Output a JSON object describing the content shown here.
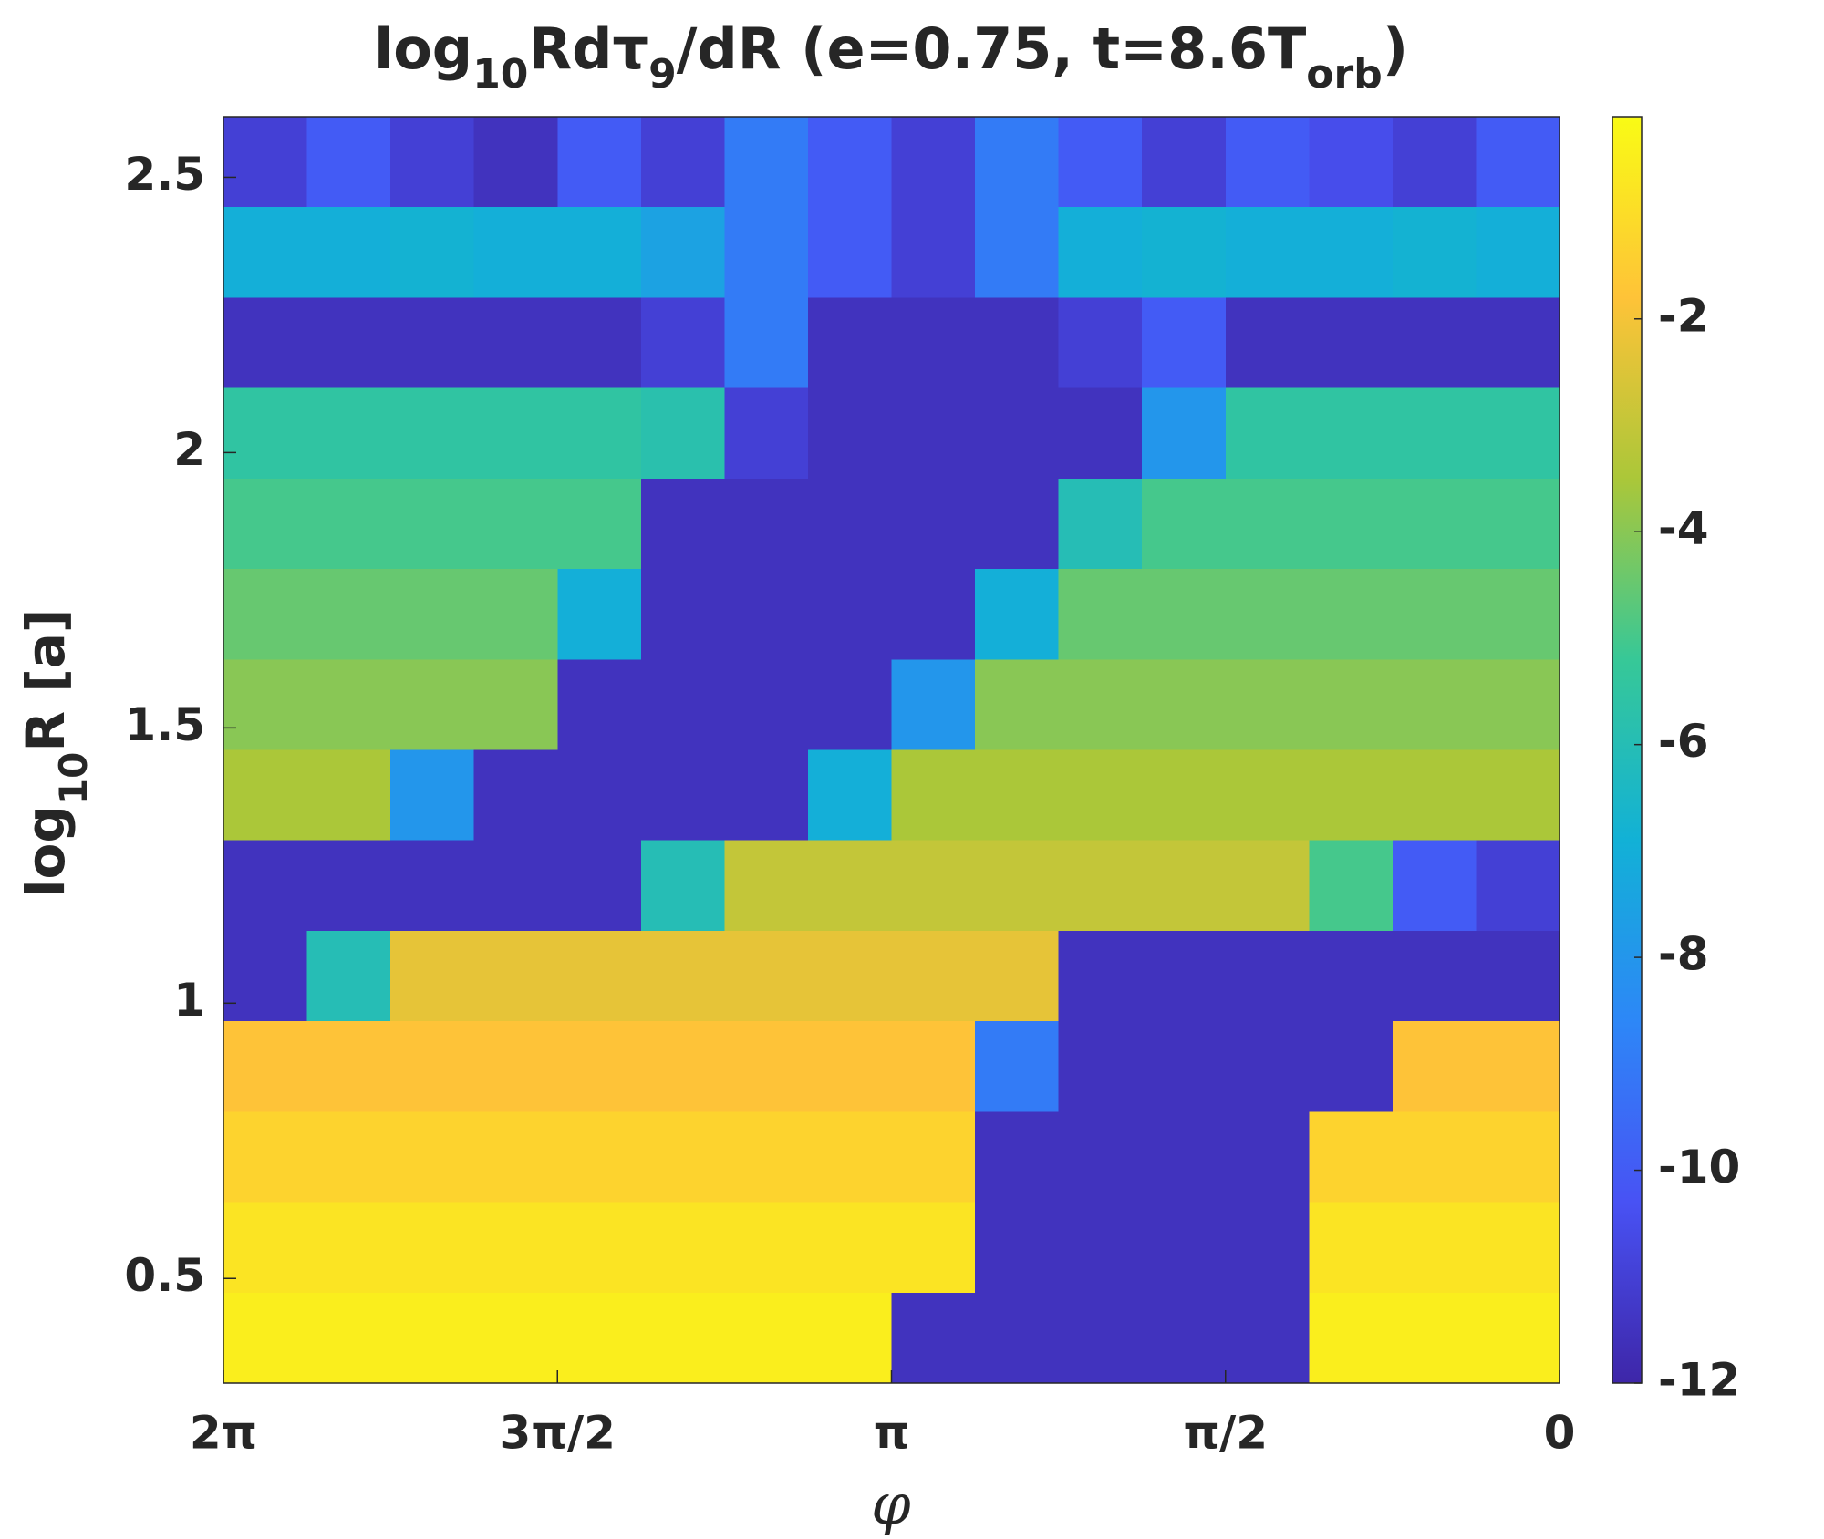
{
  "chart_data": {
    "type": "heatmap",
    "title": [
      "log",
      "10",
      "Rdτ",
      "9",
      "/dR (e=0.75, t=8.6T",
      "orb",
      ")"
    ],
    "x_label": "φ",
    "y_label": [
      "log",
      "10",
      "R [a]"
    ],
    "xlim": [
      6.283185,
      0
    ],
    "xticks": [
      {
        "value": 6.283185,
        "label": "2π"
      },
      {
        "value": 4.712389,
        "label": "3π/2"
      },
      {
        "value": 3.141593,
        "label": "π"
      },
      {
        "value": 1.570796,
        "label": "π/2"
      },
      0
    ],
    "ylim": [
      0.31,
      2.61
    ],
    "yticks": [
      0.5,
      1,
      1.5,
      2,
      2.5
    ],
    "clim": [
      -12,
      -0.1
    ],
    "cticks": [
      -12,
      -10,
      -8,
      -6,
      -4,
      -2
    ],
    "colormap": [
      "#3e26a8",
      "#4852f4",
      "#2d87f7",
      "#12b1d6",
      "#37c897",
      "#abc739",
      "#fec338",
      "#f9fb15"
    ],
    "values": [
      [
        -11,
        -10,
        -11,
        -11.5,
        -10,
        -11,
        -9,
        -10,
        -11,
        -9,
        -10,
        -11,
        -10,
        -10.5,
        -11,
        -10
      ],
      [
        -7,
        -7,
        -6.8,
        -7,
        -7,
        -7.5,
        -9,
        -10,
        -11,
        -9,
        -7,
        -6.8,
        -7,
        -7,
        -6.8,
        -7
      ],
      [
        -11.5,
        -11.5,
        -11.5,
        -11.5,
        -11.5,
        -11,
        -9,
        -11.5,
        -11.5,
        -11.5,
        -11,
        -10,
        -11.5,
        -11.5,
        -11.5,
        -11.5
      ],
      [
        -5.5,
        -5.5,
        -5.5,
        -5.5,
        -5.5,
        -5.8,
        -11,
        -11.5,
        -11.5,
        -11.5,
        -11.5,
        -8,
        -5.5,
        -5.5,
        -5.5,
        -5.5
      ],
      [
        -5,
        -5,
        -5,
        -5,
        -5,
        -11.5,
        -11.5,
        -11.5,
        -11.5,
        -11.5,
        -6,
        -5,
        -5,
        -5,
        -5,
        -5
      ],
      [
        -4.5,
        -4.5,
        -4.5,
        -4.5,
        -7,
        -11.5,
        -11.5,
        -11.5,
        -11.5,
        -7,
        -4.5,
        -4.5,
        -4.5,
        -4.5,
        -4.5,
        -4.5
      ],
      [
        -4,
        -4,
        -4,
        -4,
        -11.5,
        -11.5,
        -11.5,
        -11.5,
        -8,
        -4,
        -4,
        -4,
        -4,
        -4,
        -4,
        -4
      ],
      [
        -3.5,
        -3.5,
        -8,
        -11.5,
        -11.5,
        -11.5,
        -11.5,
        -7,
        -3.5,
        -3.5,
        -3.5,
        -3.5,
        -3.5,
        -3.5,
        -3.5,
        -3.5
      ],
      [
        -11.5,
        -11.5,
        -11.5,
        -11.5,
        -11.5,
        -6,
        -3,
        -3,
        -3,
        -3,
        -3,
        -3,
        -3,
        -5,
        -10,
        -11
      ],
      [
        -11.5,
        -6,
        -2.3,
        -2.3,
        -2.3,
        -2.3,
        -2.3,
        -2.3,
        -2.3,
        -2.3,
        -11.5,
        -11.5,
        -11.5,
        -11.5,
        -11.5,
        -11.5
      ],
      [
        -1.8,
        -1.8,
        -1.8,
        -1.8,
        -1.8,
        -1.8,
        -1.8,
        -1.8,
        -1.8,
        -9,
        -11.5,
        -11.5,
        -11.5,
        -11.5,
        -1.8,
        -1.8
      ],
      [
        -1.3,
        -1.3,
        -1.3,
        -1.3,
        -1.3,
        -1.3,
        -1.3,
        -1.3,
        -1.3,
        -11.5,
        -11.5,
        -11.5,
        -11.5,
        -1.3,
        -1.3,
        -1.3
      ],
      [
        -0.8,
        -0.8,
        -0.8,
        -0.8,
        -0.8,
        -0.8,
        -0.8,
        -0.8,
        -0.8,
        -11.5,
        -11.5,
        -11.5,
        -11.5,
        -0.8,
        -0.8,
        -0.8
      ],
      [
        -0.5,
        -0.5,
        -0.5,
        -0.5,
        -0.5,
        -0.5,
        -0.5,
        -0.5,
        -11.5,
        -11.5,
        -11.5,
        -11.5,
        -11.5,
        -0.5,
        -0.5,
        -0.5
      ]
    ]
  }
}
